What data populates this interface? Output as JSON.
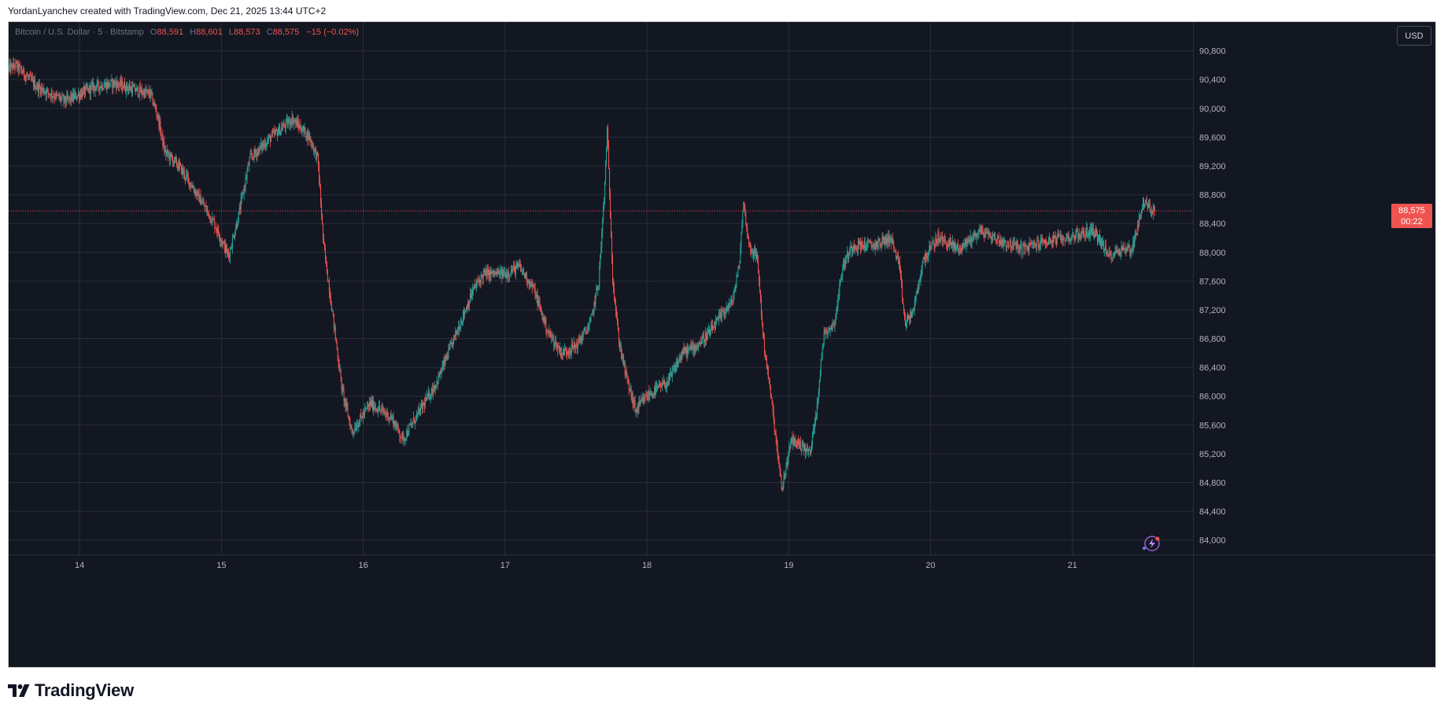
{
  "caption": "YordanLyanchev created with TradingView.com, Dec 21, 2025 13:44 UTC+2",
  "legend": {
    "symbol": "Bitcoin / U.S. Dollar · 5 · Bitstamp",
    "open_label": "O",
    "open": "88,591",
    "high_label": "H",
    "high": "88,601",
    "low_label": "L",
    "low": "88,573",
    "close_label": "C",
    "close": "88,575",
    "change": "−15 (−0.02%)"
  },
  "currency_button": "USD",
  "price_badge": {
    "price": "88,575",
    "countdown": "00:22"
  },
  "brand": {
    "name": "TradingView",
    "logo_icon": "tradingview-logo-icon"
  },
  "assistant_icon": "sparkle-assistant-icon",
  "colors": {
    "background": "#131722",
    "grid": "#2a2e39",
    "up": "#26a69a",
    "down": "#ef5350",
    "text": "#b2b5be"
  },
  "chart_data": {
    "type": "candlestick",
    "x_unit": "day of December 2025",
    "xlim": [
      13.5,
      21.85
    ],
    "ylim": [
      83800,
      91200
    ],
    "x_ticks": [
      {
        "value": 14,
        "label": "14"
      },
      {
        "value": 15,
        "label": "15"
      },
      {
        "value": 16,
        "label": "16"
      },
      {
        "value": 17,
        "label": "17"
      },
      {
        "value": 18,
        "label": "18"
      },
      {
        "value": 19,
        "label": "19"
      },
      {
        "value": 20,
        "label": "20"
      },
      {
        "value": 21,
        "label": "21"
      }
    ],
    "y_ticks": [
      {
        "value": 84000,
        "label": "84,000"
      },
      {
        "value": 84400,
        "label": "84,400"
      },
      {
        "value": 84800,
        "label": "84,800"
      },
      {
        "value": 85200,
        "label": "85,200"
      },
      {
        "value": 85600,
        "label": "85,600"
      },
      {
        "value": 86000,
        "label": "86,000"
      },
      {
        "value": 86400,
        "label": "86,400"
      },
      {
        "value": 86800,
        "label": "86,800"
      },
      {
        "value": 87200,
        "label": "87,200"
      },
      {
        "value": 87600,
        "label": "87,600"
      },
      {
        "value": 88000,
        "label": "88,000"
      },
      {
        "value": 88400,
        "label": "88,400"
      },
      {
        "value": 88800,
        "label": "88,800"
      },
      {
        "value": 89200,
        "label": "89,200"
      },
      {
        "value": 89600,
        "label": "89,600"
      },
      {
        "value": 90000,
        "label": "90,000"
      },
      {
        "value": 90400,
        "label": "90,400"
      },
      {
        "value": 90800,
        "label": "90,800"
      }
    ],
    "last_price": 88575,
    "price_path": [
      [
        13.5,
        90550
      ],
      [
        13.55,
        90600
      ],
      [
        13.7,
        90300
      ],
      [
        13.9,
        90100
      ],
      [
        14.1,
        90300
      ],
      [
        14.25,
        90350
      ],
      [
        14.4,
        90250
      ],
      [
        14.5,
        90200
      ],
      [
        14.55,
        89900
      ],
      [
        14.6,
        89400
      ],
      [
        14.7,
        89200
      ],
      [
        14.8,
        88900
      ],
      [
        14.95,
        88400
      ],
      [
        15.05,
        87950
      ],
      [
        15.12,
        88500
      ],
      [
        15.2,
        89300
      ],
      [
        15.35,
        89600
      ],
      [
        15.5,
        89850
      ],
      [
        15.62,
        89600
      ],
      [
        15.68,
        89300
      ],
      [
        15.72,
        88100
      ],
      [
        15.78,
        87200
      ],
      [
        15.85,
        86100
      ],
      [
        15.92,
        85500
      ],
      [
        16.05,
        85900
      ],
      [
        16.2,
        85700
      ],
      [
        16.28,
        85400
      ],
      [
        16.4,
        85800
      ],
      [
        16.52,
        86200
      ],
      [
        16.6,
        86600
      ],
      [
        16.7,
        87100
      ],
      [
        16.78,
        87500
      ],
      [
        16.85,
        87700
      ],
      [
        17.0,
        87700
      ],
      [
        17.1,
        87800
      ],
      [
        17.2,
        87500
      ],
      [
        17.3,
        86900
      ],
      [
        17.4,
        86600
      ],
      [
        17.5,
        86700
      ],
      [
        17.6,
        87000
      ],
      [
        17.66,
        87600
      ],
      [
        17.7,
        88800
      ],
      [
        17.72,
        89700
      ],
      [
        17.76,
        87600
      ],
      [
        17.8,
        86800
      ],
      [
        17.85,
        86300
      ],
      [
        17.92,
        85800
      ],
      [
        18.0,
        86000
      ],
      [
        18.15,
        86200
      ],
      [
        18.25,
        86600
      ],
      [
        18.35,
        86700
      ],
      [
        18.45,
        86900
      ],
      [
        18.55,
        87200
      ],
      [
        18.6,
        87300
      ],
      [
        18.65,
        87800
      ],
      [
        18.68,
        88700
      ],
      [
        18.72,
        88100
      ],
      [
        18.78,
        87900
      ],
      [
        18.82,
        86800
      ],
      [
        18.88,
        85900
      ],
      [
        18.95,
        84700
      ],
      [
        19.02,
        85400
      ],
      [
        19.1,
        85300
      ],
      [
        19.15,
        85200
      ],
      [
        19.2,
        85900
      ],
      [
        19.25,
        86900
      ],
      [
        19.32,
        87000
      ],
      [
        19.38,
        87800
      ],
      [
        19.45,
        88100
      ],
      [
        19.6,
        88100
      ],
      [
        19.72,
        88200
      ],
      [
        19.78,
        87800
      ],
      [
        19.82,
        87000
      ],
      [
        19.88,
        87200
      ],
      [
        19.95,
        87900
      ],
      [
        20.05,
        88200
      ],
      [
        20.2,
        88050
      ],
      [
        20.35,
        88300
      ],
      [
        20.5,
        88150
      ],
      [
        20.65,
        88050
      ],
      [
        20.8,
        88150
      ],
      [
        20.95,
        88200
      ],
      [
        21.05,
        88250
      ],
      [
        21.15,
        88300
      ],
      [
        21.2,
        88150
      ],
      [
        21.25,
        87950
      ],
      [
        21.35,
        88050
      ],
      [
        21.42,
        88050
      ],
      [
        21.47,
        88450
      ],
      [
        21.5,
        88700
      ],
      [
        21.55,
        88600
      ],
      [
        21.58,
        88575
      ]
    ]
  }
}
